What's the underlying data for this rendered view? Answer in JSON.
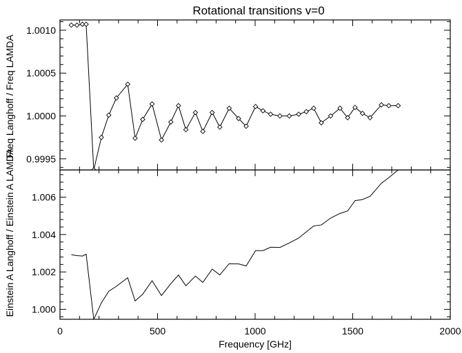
{
  "chart_data": [
    {
      "type": "line",
      "title": "Rotational transitions v=0",
      "ylabel": "Freq Langhoff / Freq LAMDA",
      "xlabel": "",
      "xlim": [
        0,
        2000
      ],
      "ylim": [
        0.99937,
        1.00112
      ],
      "yticks": [
        0.9995,
        1.0,
        1.0005,
        1.001
      ],
      "ytick_labels": [
        "0.9995",
        "1.0000",
        "1.0005",
        "1.0010"
      ],
      "xticks": [
        0,
        500,
        1000,
        1500,
        2000
      ],
      "markers": "diamond",
      "grid": false,
      "series": [
        {
          "x": [
            58,
            87,
            115,
            134,
            173,
            212,
            250,
            289,
            347,
            385,
            424,
            472,
            520,
            568,
            607,
            645,
            694,
            732,
            780,
            819,
            867,
            915,
            954,
            1002,
            1040,
            1079,
            1127,
            1175,
            1223,
            1262,
            1300,
            1339,
            1387,
            1435,
            1474,
            1512,
            1550,
            1589,
            1647,
            1685,
            1733
          ],
          "y": [
            1.00106,
            1.00106,
            1.00107,
            1.00107,
            0.99937,
            0.99975,
            1.00001,
            1.00021,
            1.00037,
            0.99974,
            0.99996,
            1.00014,
            0.99972,
            0.99993,
            1.00012,
            0.99984,
            1.00004,
            0.99982,
            1.00004,
            0.99987,
            1.00009,
            0.99997,
            0.99988,
            1.00011,
            1.00006,
            1.00002,
            1.0,
            1.0,
            1.00002,
            1.00005,
            1.00009,
            0.99992,
            1.0,
            1.00009,
            0.99998,
            1.0001,
            1.00003,
            0.99998,
            1.00013,
            1.00012,
            1.00012
          ]
        }
      ]
    },
    {
      "type": "line",
      "title": "",
      "ylabel": "Einstein A Langhoff / Einstein A LAMDA",
      "xlabel": "Frequency [GHz]",
      "xlim": [
        0,
        2000
      ],
      "ylim": [
        0.99947,
        1.00745
      ],
      "yticks": [
        1.0,
        1.002,
        1.004,
        1.006
      ],
      "ytick_labels": [
        "1.000",
        "1.002",
        "1.004",
        "1.006"
      ],
      "xticks": [
        0,
        500,
        1000,
        1500,
        2000
      ],
      "xtick_labels": [
        "0",
        "500",
        "1000",
        "1500",
        "2000"
      ],
      "grid": false,
      "series": [
        {
          "x": [
            58,
            87,
            115,
            134,
            173,
            212,
            250,
            289,
            347,
            385,
            424,
            472,
            520,
            568,
            607,
            645,
            694,
            732,
            780,
            819,
            867,
            915,
            954,
            1002,
            1040,
            1079,
            1127,
            1175,
            1223,
            1262,
            1300,
            1339,
            1387,
            1435,
            1474,
            1512,
            1550,
            1589,
            1647,
            1685,
            1733
          ],
          "y": [
            1.00292,
            1.00287,
            1.00285,
            1.00295,
            0.99947,
            1.00035,
            1.00097,
            1.00123,
            1.00169,
            1.00045,
            1.00081,
            1.00153,
            1.00074,
            1.00137,
            1.00184,
            1.00126,
            1.00178,
            1.00144,
            1.00215,
            1.00184,
            1.00244,
            1.00243,
            1.00232,
            1.00314,
            1.00314,
            1.00332,
            1.00331,
            1.00355,
            1.00381,
            1.00414,
            1.00446,
            1.00451,
            1.00488,
            1.00513,
            1.00526,
            1.00581,
            1.00587,
            1.00604,
            1.00674,
            1.00704,
            1.00745
          ]
        }
      ]
    }
  ]
}
